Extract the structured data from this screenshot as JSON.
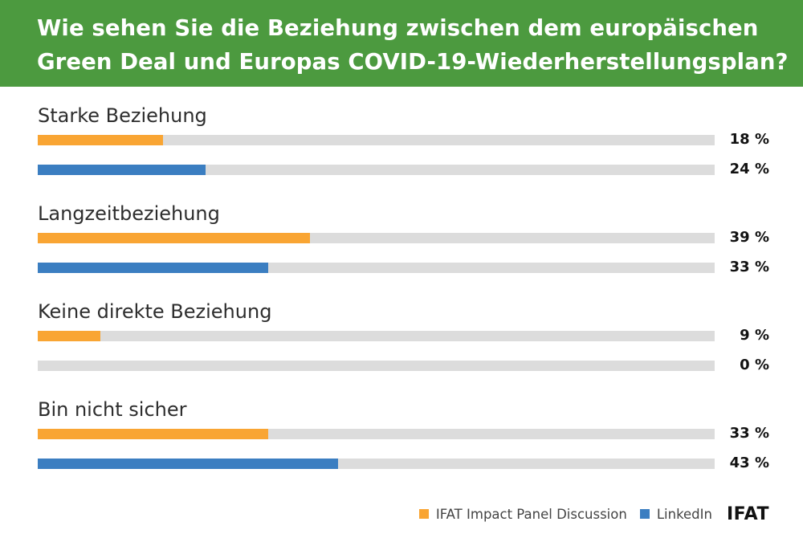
{
  "header": {
    "title": "Wie sehen Sie die Beziehung zwischen dem europäischen\nGreen Deal und Europas COVID-19-Wiederherstellungsplan?"
  },
  "colors": {
    "header_bg": "#4c9a3f",
    "series_1": "#f9a533",
    "series_2": "#3b7ec1",
    "track": "#dcdcdc"
  },
  "legend": {
    "logo": "IFAT"
  },
  "chart_data": {
    "type": "bar",
    "orientation": "horizontal",
    "title": "Wie sehen Sie die Beziehung zwischen dem europäischen Green Deal und Europas COVID-19-Wiederherstellungsplan?",
    "categories": [
      "Starke Beziehung",
      "Langzeitbeziehung",
      "Keine direkte Beziehung",
      "Bin nicht sicher"
    ],
    "series": [
      {
        "name": "IFAT Impact Panel Discussion",
        "values": [
          18,
          39,
          9,
          33
        ],
        "labels": [
          "18 %",
          "39 %",
          "9 %",
          "33 %"
        ],
        "color": "#f9a533"
      },
      {
        "name": "LinkedIn",
        "values": [
          24,
          33,
          0,
          43
        ],
        "labels": [
          "24 %",
          "33 %",
          "0 %",
          "43 %"
        ],
        "color": "#3b7ec1"
      }
    ],
    "xlim": [
      0,
      97
    ],
    "legend_position": "bottom-right",
    "grid": false
  }
}
